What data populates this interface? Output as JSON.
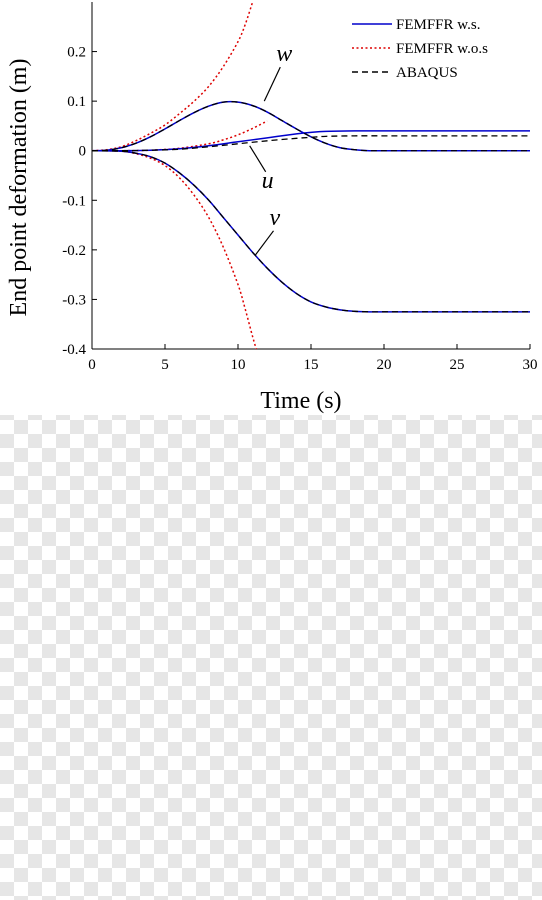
{
  "chart_data": {
    "type": "line",
    "title": "",
    "xlabel": "Time (s)",
    "ylabel": "End point deformation (m)",
    "xlim": [
      0,
      30
    ],
    "ylim": [
      -0.4,
      0.3
    ],
    "xticks": [
      0,
      5,
      10,
      15,
      20,
      25,
      30
    ],
    "yticks": [
      -0.4,
      -0.3,
      -0.2,
      -0.1,
      0,
      0.1,
      0.2
    ],
    "ytick_labels": [
      "-0.4",
      "-0.3",
      "-0.2",
      "-0.1",
      "0",
      "0.1",
      "0.2"
    ],
    "grid": false,
    "legend": {
      "position": "top-right",
      "entries": [
        {
          "label": "FEMFFR w.s.",
          "color": "#0000cc",
          "dash": "solid"
        },
        {
          "label": "FEMFFR w.o.s",
          "color": "#dd0000",
          "dash": "dotted"
        },
        {
          "label": "ABAQUS",
          "color": "#000000",
          "dash": "dashed"
        }
      ]
    },
    "annotations": [
      {
        "text": "w",
        "target_x": 11.8,
        "target_y": 0.1
      },
      {
        "text": "u",
        "target_x": 10.8,
        "target_y": 0.01
      },
      {
        "text": "v",
        "target_x": 11.2,
        "target_y": -0.21
      }
    ],
    "series": [
      {
        "component": "w",
        "legend_index": 0,
        "x": [
          0,
          1,
          2,
          3,
          4,
          5,
          6,
          7,
          8,
          9,
          10,
          11,
          12,
          13,
          14,
          15,
          16,
          17,
          18,
          19,
          20,
          22,
          25,
          28,
          30
        ],
        "y": [
          0,
          0.001,
          0.006,
          0.015,
          0.028,
          0.044,
          0.061,
          0.077,
          0.09,
          0.098,
          0.098,
          0.091,
          0.078,
          0.061,
          0.044,
          0.028,
          0.015,
          0.006,
          0.002,
          0.0,
          0.0,
          0.0,
          0.0,
          0.0,
          0.0
        ]
      },
      {
        "component": "w",
        "legend_index": 1,
        "x": [
          0,
          1,
          2,
          3,
          4,
          5,
          6,
          7,
          8,
          9,
          10,
          10.5,
          11
        ],
        "y": [
          0,
          0.002,
          0.008,
          0.02,
          0.035,
          0.052,
          0.075,
          0.1,
          0.13,
          0.17,
          0.22,
          0.255,
          0.3
        ]
      },
      {
        "component": "w",
        "legend_index": 2,
        "x": [
          0,
          1,
          2,
          3,
          4,
          5,
          6,
          7,
          8,
          9,
          10,
          11,
          12,
          13,
          14,
          15,
          16,
          17,
          18,
          19,
          20,
          22,
          25,
          28,
          30
        ],
        "y": [
          0,
          0.001,
          0.006,
          0.015,
          0.028,
          0.044,
          0.061,
          0.077,
          0.09,
          0.098,
          0.098,
          0.091,
          0.078,
          0.061,
          0.044,
          0.028,
          0.015,
          0.006,
          0.002,
          0.0,
          0.0,
          0.0,
          0.0,
          0.0,
          0.0
        ]
      },
      {
        "component": "u",
        "legend_index": 0,
        "x": [
          0,
          2,
          4,
          6,
          8,
          10,
          12,
          14,
          15,
          16,
          18,
          20,
          22,
          25,
          28,
          30
        ],
        "y": [
          0,
          0.0,
          0.001,
          0.004,
          0.01,
          0.018,
          0.026,
          0.034,
          0.037,
          0.039,
          0.04,
          0.04,
          0.04,
          0.04,
          0.04,
          0.04
        ]
      },
      {
        "component": "u",
        "legend_index": 1,
        "x": [
          0,
          2,
          4,
          6,
          8,
          9,
          10,
          11,
          12
        ],
        "y": [
          0,
          0.0,
          0.001,
          0.005,
          0.014,
          0.022,
          0.032,
          0.045,
          0.06
        ]
      },
      {
        "component": "u",
        "legend_index": 2,
        "x": [
          0,
          2,
          4,
          6,
          8,
          10,
          12,
          14,
          15,
          16,
          18,
          20,
          22,
          25,
          28,
          30
        ],
        "y": [
          0,
          0.0,
          0.001,
          0.003,
          0.008,
          0.014,
          0.02,
          0.025,
          0.027,
          0.029,
          0.03,
          0.03,
          0.03,
          0.03,
          0.03,
          0.03
        ]
      },
      {
        "component": "v",
        "legend_index": 0,
        "x": [
          0,
          2,
          3,
          4,
          5,
          6,
          7,
          8,
          9,
          10,
          11,
          12,
          13,
          14,
          15,
          16,
          17,
          18,
          19,
          20,
          22,
          25,
          28,
          30
        ],
        "y": [
          0,
          -0.001,
          -0.005,
          -0.012,
          -0.025,
          -0.045,
          -0.07,
          -0.1,
          -0.135,
          -0.17,
          -0.205,
          -0.237,
          -0.265,
          -0.288,
          -0.305,
          -0.315,
          -0.321,
          -0.324,
          -0.325,
          -0.325,
          -0.325,
          -0.325,
          -0.325,
          -0.325
        ]
      },
      {
        "component": "v",
        "legend_index": 1,
        "x": [
          0,
          2,
          3,
          4,
          5,
          6,
          7,
          8,
          9,
          10,
          10.5,
          11,
          11.3
        ],
        "y": [
          0,
          -0.001,
          -0.006,
          -0.015,
          -0.03,
          -0.055,
          -0.09,
          -0.135,
          -0.195,
          -0.27,
          -0.32,
          -0.375,
          -0.405
        ]
      },
      {
        "component": "v",
        "legend_index": 2,
        "x": [
          0,
          2,
          3,
          4,
          5,
          6,
          7,
          8,
          9,
          10,
          11,
          12,
          13,
          14,
          15,
          16,
          17,
          18,
          19,
          20,
          22,
          25,
          28,
          30
        ],
        "y": [
          0,
          -0.001,
          -0.005,
          -0.012,
          -0.025,
          -0.045,
          -0.07,
          -0.1,
          -0.135,
          -0.17,
          -0.205,
          -0.237,
          -0.265,
          -0.288,
          -0.305,
          -0.315,
          -0.321,
          -0.324,
          -0.325,
          -0.325,
          -0.325,
          -0.325,
          -0.325,
          -0.325
        ]
      }
    ]
  }
}
